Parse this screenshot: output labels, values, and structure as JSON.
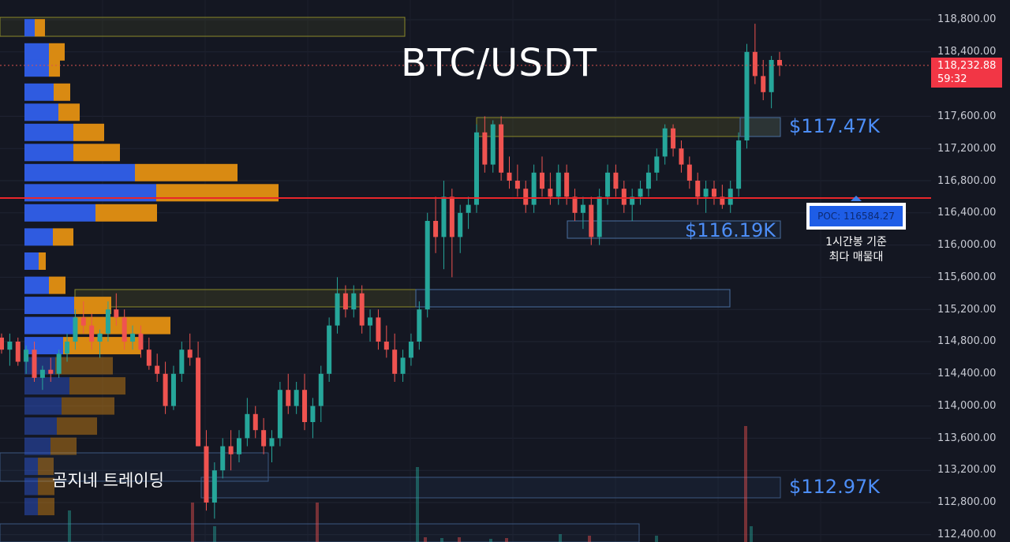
{
  "title": "BTC/USDT",
  "levels": [
    "$117.47K",
    "$116.19K",
    "$112.97K"
  ],
  "poc": {
    "label": "POC: 116584.27",
    "note_line1": "1시간봉 기준",
    "note_line2": "최다 매물대"
  },
  "brand": "곰지네 트레이딩",
  "price_axis": {
    "ticks": [
      "118,800.00",
      "118,400.00",
      "117,600.00",
      "117,200.00",
      "116,800.00",
      "116,400.00",
      "116,000.00",
      "115,600.00",
      "115,200.00",
      "114,800.00",
      "114,400.00",
      "114,000.00",
      "113,600.00",
      "113,200.00",
      "112,800.00",
      "112,400.00"
    ],
    "last_price": "118,232.88",
    "countdown": "59:32"
  },
  "colors": {
    "background": "#141722",
    "up": "#26a69a",
    "down": "#ef5350",
    "poc_line": "#e8262a",
    "zone_label": "#4d8ef7",
    "profile_buy": "#2f5be0",
    "profile_sell": "#d98a12"
  },
  "chart_data": {
    "type": "candlestick",
    "title": "BTC/USDT",
    "ylim": [
      112300,
      119000
    ],
    "y_ticks": [
      112400,
      112800,
      113200,
      113600,
      114000,
      114400,
      114800,
      115200,
      115600,
      116000,
      116400,
      116800,
      117200,
      117600,
      118400,
      118800
    ],
    "last_price": 118232.88,
    "poc_price": 116584.27,
    "levels": [
      117470,
      116190,
      112970
    ],
    "candles": [
      [
        114850,
        114900,
        114650,
        114700
      ],
      [
        114700,
        114900,
        114500,
        114800
      ],
      [
        114800,
        114850,
        114500,
        114550
      ],
      [
        114550,
        114750,
        114400,
        114700
      ],
      [
        114700,
        114800,
        114300,
        114350
      ],
      [
        114350,
        114500,
        114200,
        114450
      ],
      [
        114450,
        114600,
        114300,
        114400
      ],
      [
        114400,
        114700,
        114350,
        114650
      ],
      [
        114650,
        114900,
        114550,
        114800
      ],
      [
        114800,
        115200,
        114700,
        115100
      ],
      [
        115100,
        115300,
        114900,
        115000
      ],
      [
        115000,
        115150,
        114700,
        114800
      ],
      [
        114800,
        114950,
        114600,
        114900
      ],
      [
        114900,
        115300,
        114800,
        115200
      ],
      [
        115200,
        115400,
        115000,
        115100
      ],
      [
        115100,
        115200,
        114700,
        114800
      ],
      [
        114800,
        115000,
        114700,
        114900
      ],
      [
        114900,
        115000,
        114600,
        114700
      ],
      [
        114700,
        114850,
        114450,
        114500
      ],
      [
        114500,
        114650,
        114300,
        114400
      ],
      [
        114400,
        114550,
        113900,
        114000
      ],
      [
        114000,
        114500,
        113950,
        114400
      ],
      [
        114400,
        114800,
        114300,
        114700
      ],
      [
        114700,
        114900,
        114500,
        114600
      ],
      [
        114600,
        114800,
        113500,
        113500
      ],
      [
        113500,
        113700,
        112700,
        112800
      ],
      [
        112800,
        113300,
        112600,
        113200
      ],
      [
        113200,
        113600,
        113100,
        113500
      ],
      [
        113500,
        113700,
        113200,
        113400
      ],
      [
        113400,
        113700,
        113300,
        113600
      ],
      [
        113600,
        114100,
        113500,
        113900
      ],
      [
        113900,
        114000,
        113600,
        113700
      ],
      [
        113700,
        113850,
        113400,
        113500
      ],
      [
        113500,
        113700,
        113300,
        113600
      ],
      [
        113600,
        114300,
        113500,
        114200
      ],
      [
        114200,
        114400,
        113900,
        114000
      ],
      [
        114000,
        114300,
        113900,
        114200
      ],
      [
        114200,
        114400,
        113700,
        113800
      ],
      [
        113800,
        114100,
        113600,
        114000
      ],
      [
        114000,
        114500,
        113800,
        114400
      ],
      [
        114400,
        115100,
        114300,
        115000
      ],
      [
        115000,
        115600,
        114900,
        115400
      ],
      [
        115400,
        115500,
        115100,
        115200
      ],
      [
        115200,
        115500,
        115100,
        115400
      ],
      [
        115400,
        115500,
        114900,
        115000
      ],
      [
        115000,
        115200,
        114800,
        115100
      ],
      [
        115100,
        115200,
        114700,
        114800
      ],
      [
        114800,
        115000,
        114600,
        114700
      ],
      [
        114700,
        114900,
        114300,
        114400
      ],
      [
        114400,
        114700,
        114300,
        114600
      ],
      [
        114600,
        114900,
        114500,
        114800
      ],
      [
        114800,
        115300,
        114700,
        115200
      ],
      [
        115200,
        116400,
        115100,
        116300
      ],
      [
        116300,
        116600,
        115900,
        116100
      ],
      [
        116100,
        116800,
        115700,
        116600
      ],
      [
        116600,
        116700,
        115600,
        116100
      ],
      [
        116100,
        116500,
        115900,
        116400
      ],
      [
        116400,
        116600,
        116200,
        116500
      ],
      [
        116500,
        117500,
        116400,
        117400
      ],
      [
        117400,
        117600,
        116900,
        117000
      ],
      [
        117000,
        117550,
        116900,
        117500
      ],
      [
        117500,
        117600,
        116800,
        116900
      ],
      [
        116900,
        117100,
        116700,
        116800
      ],
      [
        116800,
        117000,
        116600,
        116700
      ],
      [
        116700,
        116800,
        116400,
        116500
      ],
      [
        116500,
        117000,
        116400,
        116900
      ],
      [
        116900,
        117100,
        116600,
        116700
      ],
      [
        116700,
        116900,
        116500,
        116600
      ],
      [
        116600,
        117000,
        116500,
        116900
      ],
      [
        116900,
        117000,
        116500,
        116600
      ],
      [
        116600,
        116700,
        116300,
        116400
      ],
      [
        116400,
        116600,
        116200,
        116500
      ],
      [
        116500,
        116600,
        116000,
        116100
      ],
      [
        116100,
        116700,
        116000,
        116600
      ],
      [
        116600,
        117000,
        116500,
        116900
      ],
      [
        116900,
        117000,
        116600,
        116700
      ],
      [
        116700,
        116800,
        116400,
        116500
      ],
      [
        116500,
        116700,
        116300,
        116600
      ],
      [
        116600,
        116800,
        116500,
        116700
      ],
      [
        116700,
        117000,
        116600,
        116900
      ],
      [
        116900,
        117200,
        116800,
        117100
      ],
      [
        117100,
        117500,
        117000,
        117450
      ],
      [
        117450,
        117500,
        117100,
        117200
      ],
      [
        117200,
        117300,
        116900,
        117000
      ],
      [
        117000,
        117100,
        116700,
        116800
      ],
      [
        116800,
        116900,
        116500,
        116600
      ],
      [
        116600,
        116800,
        116400,
        116700
      ],
      [
        116700,
        116800,
        116500,
        116600
      ],
      [
        116600,
        116750,
        116450,
        116500
      ],
      [
        116500,
        116800,
        116400,
        116700
      ],
      [
        116700,
        117400,
        116600,
        117300
      ],
      [
        117300,
        118500,
        117200,
        118400
      ],
      [
        118400,
        118750,
        118000,
        118100
      ],
      [
        118100,
        118300,
        117800,
        117900
      ],
      [
        117900,
        118350,
        117700,
        118300
      ],
      [
        118300,
        118400,
        118100,
        118232.88
      ]
    ],
    "volume_profile": {
      "price_bins": [
        118700,
        118400,
        118200,
        117900,
        117650,
        117400,
        117150,
        116900,
        116650,
        116400,
        116100,
        115800,
        115500,
        115250,
        115000,
        114750,
        114500,
        114250,
        114000,
        113750,
        113500,
        113250,
        113000,
        112750
      ],
      "buy": [
        13,
        31,
        31,
        37,
        43,
        62,
        62,
        140,
        167,
        90,
        36,
        18,
        31,
        63,
        63,
        49,
        39,
        57,
        47,
        41,
        33,
        17,
        17,
        17
      ],
      "sell": [
        13,
        20,
        14,
        21,
        27,
        39,
        59,
        130,
        155,
        78,
        26,
        9,
        21,
        47,
        122,
        98,
        73,
        71,
        67,
        51,
        33,
        20,
        21,
        21
      ]
    },
    "volume": [
      0,
      0,
      0,
      0,
      0,
      0,
      0,
      0,
      0,
      0,
      0,
      0,
      0,
      0,
      0,
      0,
      0,
      0,
      0,
      0,
      0,
      0,
      0,
      0,
      0,
      0,
      0,
      0,
      0,
      0,
      0,
      0,
      0,
      0,
      0,
      0,
      0,
      0,
      0,
      0,
      0,
      0,
      0,
      0,
      0,
      0,
      0,
      0,
      0,
      0,
      0,
      0,
      0,
      0,
      0,
      0,
      0,
      0,
      0,
      0,
      0,
      0,
      0,
      0,
      0,
      0,
      0,
      0,
      0,
      0,
      0,
      0,
      0,
      0,
      0,
      0,
      0,
      0,
      0,
      0,
      0,
      0,
      0,
      0,
      0,
      0,
      0,
      0,
      0,
      0,
      0,
      0,
      0,
      0,
      0,
      0
    ]
  }
}
